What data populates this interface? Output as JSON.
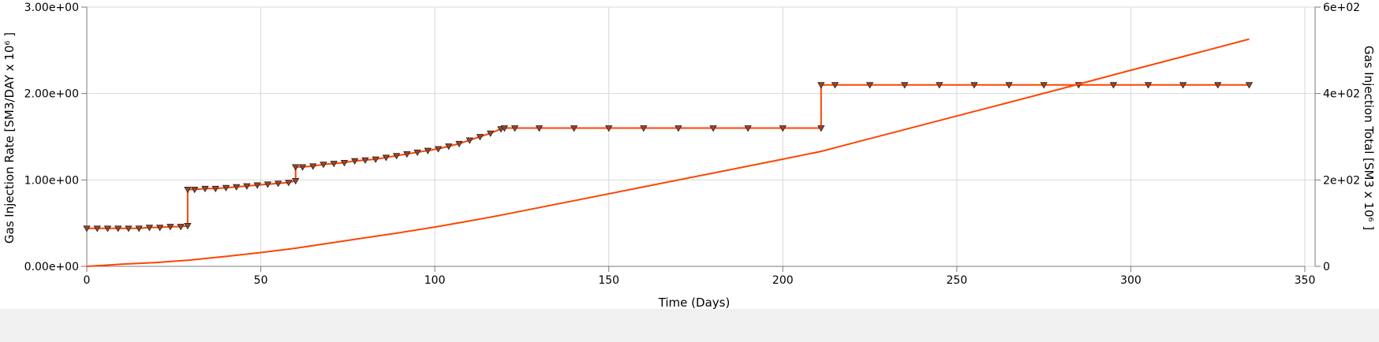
{
  "chart_data": {
    "type": "line",
    "xlabel": "Time (Days)",
    "ylabel_left": "Gas Injection Rate [SM3/DAY x 10⁶ ]",
    "ylabel_right": "Gas Injection Total [SM3 x 10⁶ ]",
    "xlim": [
      0,
      350
    ],
    "ylim_left": [
      0,
      3
    ],
    "ylim_right": [
      0,
      600
    ],
    "x_ticks": [
      "0",
      "50",
      "100",
      "150",
      "200",
      "250",
      "300",
      "350"
    ],
    "y_left_ticks": [
      "0.00e+00",
      "1.00e+00",
      "2.00e+00",
      "3.00e+00"
    ],
    "y_right_ticks": [
      "0",
      "2e+02",
      "4e+02",
      "6e+02"
    ],
    "grid": true,
    "colors": {
      "line": "#ff4500",
      "marker_fill": "#8a4a3a",
      "marker_edge": "#3a1a10",
      "grid": "#d8d8d8"
    },
    "series": [
      {
        "axis": "left",
        "style": "step-with-triangle-markers",
        "points": [
          [
            0,
            0.44
          ],
          [
            3,
            0.44
          ],
          [
            6,
            0.44
          ],
          [
            9,
            0.44
          ],
          [
            12,
            0.44
          ],
          [
            15,
            0.44
          ],
          [
            18,
            0.45
          ],
          [
            21,
            0.45
          ],
          [
            24,
            0.46
          ],
          [
            27,
            0.46
          ],
          [
            29,
            0.47
          ],
          [
            29,
            0.89
          ],
          [
            31,
            0.89
          ],
          [
            34,
            0.9
          ],
          [
            37,
            0.9
          ],
          [
            40,
            0.91
          ],
          [
            43,
            0.92
          ],
          [
            46,
            0.93
          ],
          [
            49,
            0.94
          ],
          [
            52,
            0.95
          ],
          [
            55,
            0.96
          ],
          [
            58,
            0.97
          ],
          [
            60,
            0.99
          ],
          [
            60,
            1.15
          ],
          [
            62,
            1.15
          ],
          [
            65,
            1.16
          ],
          [
            68,
            1.18
          ],
          [
            71,
            1.19
          ],
          [
            74,
            1.2
          ],
          [
            77,
            1.22
          ],
          [
            80,
            1.23
          ],
          [
            83,
            1.24
          ],
          [
            86,
            1.26
          ],
          [
            89,
            1.28
          ],
          [
            92,
            1.3
          ],
          [
            95,
            1.32
          ],
          [
            98,
            1.34
          ],
          [
            101,
            1.36
          ],
          [
            104,
            1.39
          ],
          [
            107,
            1.42
          ],
          [
            110,
            1.46
          ],
          [
            113,
            1.5
          ],
          [
            116,
            1.54
          ],
          [
            119,
            1.59
          ],
          [
            120,
            1.6
          ],
          [
            123,
            1.6
          ],
          [
            130,
            1.6
          ],
          [
            140,
            1.6
          ],
          [
            150,
            1.6
          ],
          [
            160,
            1.6
          ],
          [
            170,
            1.6
          ],
          [
            180,
            1.6
          ],
          [
            190,
            1.6
          ],
          [
            200,
            1.6
          ],
          [
            211,
            1.6
          ],
          [
            211,
            2.1
          ],
          [
            215,
            2.1
          ],
          [
            225,
            2.1
          ],
          [
            235,
            2.1
          ],
          [
            245,
            2.1
          ],
          [
            255,
            2.1
          ],
          [
            265,
            2.1
          ],
          [
            275,
            2.1
          ],
          [
            285,
            2.1
          ],
          [
            295,
            2.1
          ],
          [
            305,
            2.1
          ],
          [
            315,
            2.1
          ],
          [
            325,
            2.1
          ],
          [
            334,
            2.1
          ]
        ]
      },
      {
        "axis": "right",
        "style": "line",
        "points": [
          [
            0,
            0
          ],
          [
            10,
            5
          ],
          [
            20,
            9
          ],
          [
            29,
            14
          ],
          [
            40,
            23
          ],
          [
            50,
            32
          ],
          [
            60,
            42
          ],
          [
            70,
            54
          ],
          [
            80,
            66
          ],
          [
            90,
            78
          ],
          [
            100,
            91
          ],
          [
            110,
            105
          ],
          [
            120,
            120
          ],
          [
            140,
            152
          ],
          [
            160,
            184
          ],
          [
            180,
            216
          ],
          [
            200,
            248
          ],
          [
            211,
            266
          ],
          [
            220,
            285
          ],
          [
            240,
            327
          ],
          [
            260,
            369
          ],
          [
            280,
            411
          ],
          [
            300,
            454
          ],
          [
            320,
            496
          ],
          [
            334,
            526
          ]
        ]
      }
    ]
  }
}
